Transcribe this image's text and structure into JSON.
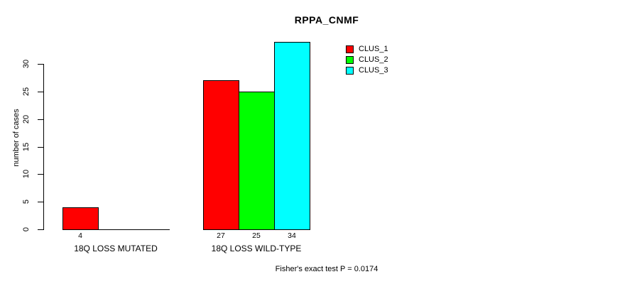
{
  "chart_data": {
    "type": "bar",
    "title": "RPPA_CNMF",
    "xlabel": "",
    "ylabel": "number of cases",
    "categories": [
      "18Q LOSS MUTATED",
      "18Q LOSS WILD-TYPE"
    ],
    "series": [
      {
        "name": "CLUS_1",
        "color": "#FF0000",
        "values": [
          4,
          27
        ]
      },
      {
        "name": "CLUS_2",
        "color": "#00FF00",
        "values": [
          0,
          25
        ]
      },
      {
        "name": "CLUS_3",
        "color": "#00FFFF",
        "values": [
          0,
          34
        ]
      }
    ],
    "yticks": [
      0,
      5,
      10,
      15,
      20,
      25,
      30
    ],
    "ylim": [
      0,
      34
    ],
    "grid": false,
    "legend_position": "top-right",
    "bar_border_color": "#000000",
    "background_color": "#FFFFFF",
    "annotation": "Fisher's exact test P = 0.0174"
  }
}
